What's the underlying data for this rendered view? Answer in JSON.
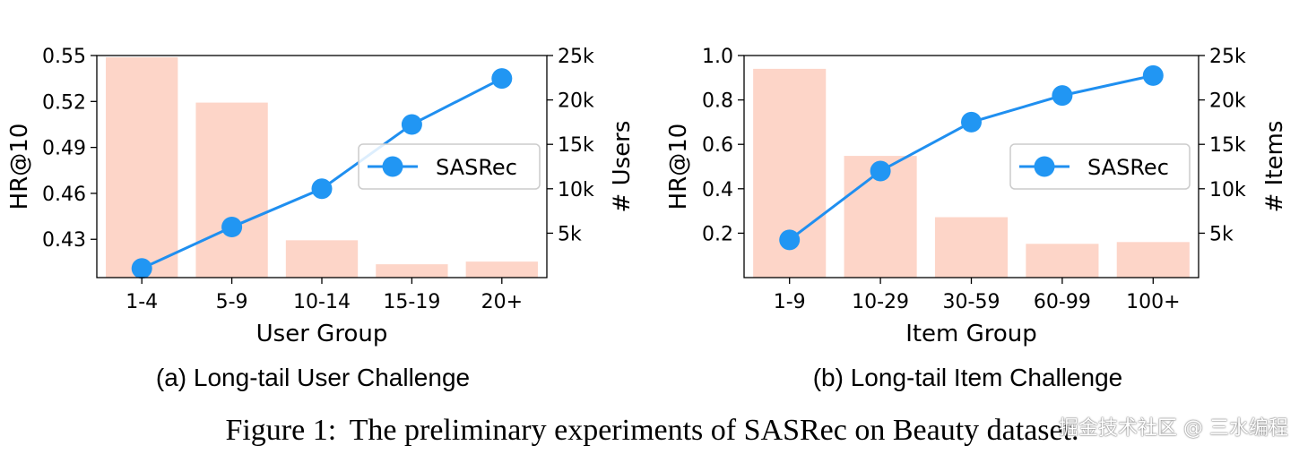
{
  "figure": {
    "caption_label": "Figure 1:",
    "caption_text": "The preliminary experiments of SASRec on Beauty dataset.",
    "watermark": "掘金技术社区 @ 三水编程"
  },
  "colors": {
    "bar": "#fdd5c8",
    "line": "#1f8ff0",
    "marker": "#2196f3"
  },
  "chart_data": [
    {
      "type": "bar+line",
      "subcaption": "(a) Long-tail User Challenge",
      "xlabel": "User Group",
      "ylabel": "HR@10",
      "y2label": "# Users",
      "categories": [
        "1-4",
        "5-9",
        "10-14",
        "15-19",
        "20+"
      ],
      "ylim": [
        0.405,
        0.55
      ],
      "yticks": [
        0.43,
        0.46,
        0.49,
        0.52,
        0.55
      ],
      "ytick_labels": [
        "0.43",
        "0.46",
        "0.49",
        "0.52",
        "0.55"
      ],
      "y2lim": [
        0,
        25000
      ],
      "y2ticks": [
        5000,
        10000,
        15000,
        20000,
        25000
      ],
      "y2tick_labels": [
        "5k",
        "10k",
        "15k",
        "20k",
        "25k"
      ],
      "bars": {
        "name": "# Users",
        "values": [
          24800,
          19700,
          4200,
          1500,
          1800
        ]
      },
      "series": [
        {
          "name": "SASRec",
          "values": [
            0.411,
            0.438,
            0.463,
            0.505,
            0.535
          ]
        }
      ],
      "legend": {
        "label": "SASRec",
        "position": "center-right"
      },
      "grid": false
    },
    {
      "type": "bar+line",
      "subcaption": "(b) Long-tail Item Challenge",
      "xlabel": "Item Group",
      "ylabel": "HR@10",
      "y2label": "# Items",
      "categories": [
        "1-9",
        "10-29",
        "30-59",
        "60-99",
        "100+"
      ],
      "ylim": [
        0.0,
        1.0
      ],
      "yticks": [
        0.2,
        0.4,
        0.6,
        0.8,
        1.0
      ],
      "ytick_labels": [
        "0.2",
        "0.4",
        "0.6",
        "0.8",
        "1.0"
      ],
      "y2lim": [
        0,
        25000
      ],
      "y2ticks": [
        5000,
        10000,
        15000,
        20000,
        25000
      ],
      "y2tick_labels": [
        "5k",
        "10k",
        "15k",
        "20k",
        "25k"
      ],
      "bars": {
        "name": "# Items",
        "values": [
          23500,
          13700,
          6800,
          3800,
          4000
        ]
      },
      "series": [
        {
          "name": "SASRec",
          "values": [
            0.17,
            0.48,
            0.7,
            0.82,
            0.91
          ]
        }
      ],
      "legend": {
        "label": "SASRec",
        "position": "center-right"
      },
      "grid": false
    }
  ]
}
